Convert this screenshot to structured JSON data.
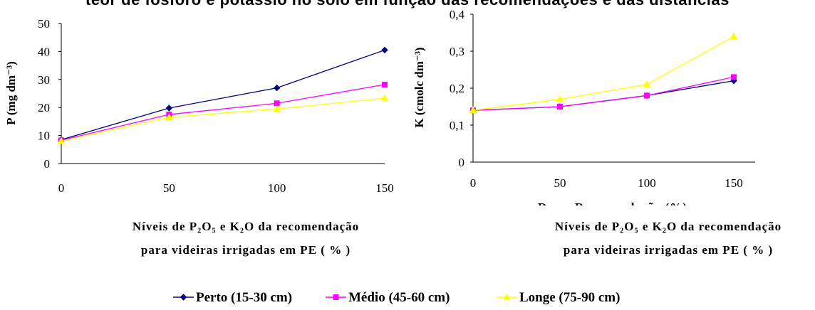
{
  "top_title": "teor de fósforo e potássio no solo em função das recomendações e das distâncias",
  "chart_data": [
    {
      "type": "line",
      "ylabel": "P (mg dm⁻³)",
      "xlabel_line1": "Níveis de P₂O₅ e K₂O da recomendação",
      "xlabel_line2": "para videiras irrigadas em PE ( % )",
      "x": [
        0,
        50,
        100,
        150
      ],
      "xticks": [
        "0",
        "50",
        "100",
        "150"
      ],
      "yticks": [
        "0",
        "10",
        "20",
        "30",
        "40",
        "50"
      ],
      "ylim": [
        0,
        50
      ],
      "grid": false,
      "series": [
        {
          "name": "Perto (15-30 cm)",
          "values": [
            8.5,
            19.8,
            27.0,
            40.5
          ],
          "color": "#000080",
          "marker": "diamond"
        },
        {
          "name": "Médio (45-60 cm)",
          "values": [
            8.3,
            17.5,
            21.5,
            28.2
          ],
          "color": "#FF00FF",
          "marker": "square"
        },
        {
          "name": "Longe (75-90 cm)",
          "values": [
            8.0,
            16.5,
            19.5,
            23.3
          ],
          "color": "#FFFF00",
          "marker": "triangle"
        }
      ]
    },
    {
      "type": "line",
      "ylabel": "K (cmolc dm⁻³)",
      "xlabel_line1": "Níveis de P₂O₅ e K₂O da recomendação",
      "xlabel_line2": "para videiras irrigadas em PE ( % )",
      "clipped_label": "Doses Recomendação (%)",
      "x": [
        0,
        50,
        100,
        150
      ],
      "xticks": [
        "0",
        "50",
        "100",
        "150"
      ],
      "yticks": [
        "0",
        "0,1",
        "0,2",
        "0,3",
        "0,4"
      ],
      "ylim": [
        0,
        0.4
      ],
      "grid": false,
      "series": [
        {
          "name": "Perto (15-30 cm)",
          "values": [
            0.14,
            0.15,
            0.18,
            0.22
          ],
          "color": "#000080",
          "marker": "diamond"
        },
        {
          "name": "Médio (45-60 cm)",
          "values": [
            0.14,
            0.15,
            0.18,
            0.23
          ],
          "color": "#FF00FF",
          "marker": "square"
        },
        {
          "name": "Longe (75-90 cm)",
          "values": [
            0.14,
            0.17,
            0.21,
            0.34
          ],
          "color": "#FFFF00",
          "marker": "triangle"
        }
      ]
    }
  ],
  "legend": [
    {
      "label": "Perto (15-30 cm)",
      "color": "#000080",
      "marker": "diamond"
    },
    {
      "label": "Médio (45-60 cm)",
      "color": "#FF00FF",
      "marker": "square"
    },
    {
      "label": "Longe (75-90 cm)",
      "color": "#FFFF00",
      "marker": "triangle"
    }
  ]
}
